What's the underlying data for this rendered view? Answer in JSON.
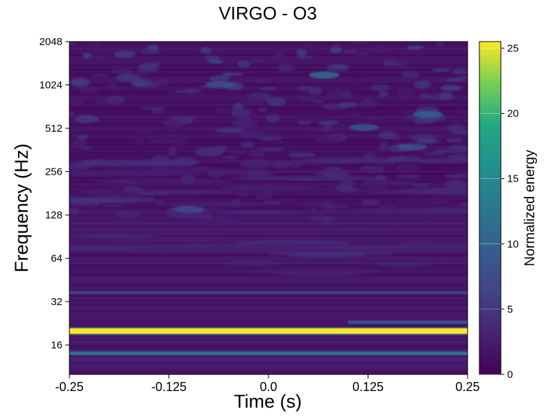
{
  "chart_data": {
    "type": "heatmap",
    "title": "VIRGO - O3",
    "xlabel": "Time (s)",
    "ylabel": "Frequency (Hz)",
    "colorbar_label": "Normalized energy",
    "colormap": "viridis",
    "xlim": [
      -0.25,
      0.25
    ],
    "ylim": [
      10,
      2048
    ],
    "yscale": "log2",
    "zlim": [
      0,
      25.5
    ],
    "x_ticks": [
      -0.25,
      -0.125,
      0.0,
      0.125,
      0.25
    ],
    "x_tick_labels": [
      "-0.25",
      "-0.125",
      "0.0",
      "0.125",
      "0.25"
    ],
    "y_ticks": [
      16,
      32,
      64,
      128,
      256,
      512,
      1024,
      2048
    ],
    "y_tick_labels": [
      "16",
      "32",
      "64",
      "128",
      "256",
      "512",
      "1024",
      "2048"
    ],
    "colorbar_ticks": [
      0,
      5,
      10,
      15,
      20,
      25
    ],
    "colorbar_tick_labels": [
      "0",
      "5",
      "10",
      "15",
      "20",
      "25"
    ],
    "grid": false,
    "features": [
      {
        "kind": "band",
        "freq_hz": 20,
        "energy": 25.5,
        "t_start": -0.25,
        "t_end": 0.25
      },
      {
        "kind": "band",
        "freq_hz": 14,
        "energy": 12,
        "t_start": -0.25,
        "t_end": 0.25
      },
      {
        "kind": "band",
        "freq_hz": 37,
        "energy": 6,
        "t_start": -0.25,
        "t_end": 0.25
      },
      {
        "kind": "band",
        "freq_hz": 23,
        "energy": 8,
        "t_start": 0.1,
        "t_end": 0.25
      },
      {
        "kind": "band",
        "freq_hz": 78,
        "energy": 3,
        "t_start": -0.25,
        "t_end": 0.25
      },
      {
        "kind": "blob",
        "freq_hz": 140,
        "t": -0.1,
        "energy": 7
      },
      {
        "kind": "blob",
        "freq_hz": 1030,
        "t": -0.06,
        "energy": 8
      },
      {
        "kind": "blob",
        "freq_hz": 1200,
        "t": 0.07,
        "energy": 12
      },
      {
        "kind": "blob",
        "freq_hz": 520,
        "t": 0.12,
        "energy": 9
      },
      {
        "kind": "blob",
        "freq_hz": 640,
        "t": 0.2,
        "energy": 10
      },
      {
        "kind": "blob",
        "freq_hz": 380,
        "t": 0.18,
        "energy": 8
      }
    ]
  },
  "colors": {
    "viridis_low": "#440154",
    "viridis_mid": "#21918c",
    "viridis_high": "#fde725"
  }
}
